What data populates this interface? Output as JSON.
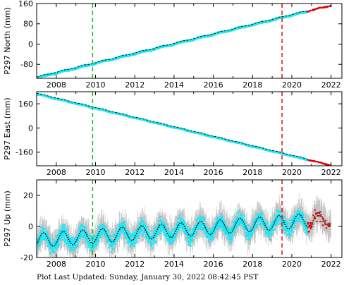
{
  "footer": "Plot Last Updated:   Sunday, January 30, 2022 08:42:45 PST",
  "colors": {
    "data": "#1fe6f5",
    "errorbars": "#aaaaaa",
    "model": "#000000",
    "recent": "#dd0000",
    "event_green": "#22bb22",
    "event_red": "#dd1111"
  },
  "chart_data": [
    {
      "type": "scatter",
      "ylabel": "P297 North (mm)",
      "xlim": [
        2007.0,
        2022.55
      ],
      "ylim": [
        -135,
        160
      ],
      "yticks": [
        -80,
        0,
        80,
        160
      ],
      "xticks": [
        2008,
        2010,
        2012,
        2014,
        2016,
        2018,
        2020,
        2022
      ],
      "vlines": [
        {
          "x": 2009.85,
          "color": "green"
        },
        {
          "x": 2019.5,
          "color": "red"
        }
      ],
      "series": [
        {
          "trend": {
            "x": [
              2007.0,
              2022.0
            ],
            "y": [
              -130,
              155
            ]
          },
          "seasonal_amplitude": 1.5,
          "scatter": 2.5
        }
      ]
    },
    {
      "type": "scatter",
      "ylabel": "P297 East (mm)",
      "xlim": [
        2007.0,
        2022.55
      ],
      "ylim": [
        -250,
        240
      ],
      "yticks": [
        -160,
        0,
        160
      ],
      "xticks": [
        2008,
        2010,
        2012,
        2014,
        2016,
        2018,
        2020,
        2022
      ],
      "vlines": [
        {
          "x": 2009.85,
          "color": "green"
        },
        {
          "x": 2019.5,
          "color": "red"
        }
      ],
      "series": [
        {
          "trend": {
            "x": [
              2007.0,
              2022.0
            ],
            "y": [
              230,
              -243
            ]
          },
          "seasonal_amplitude": 1.5,
          "scatter": 3
        }
      ]
    },
    {
      "type": "scatter",
      "ylabel": "P297 Up (mm)",
      "xlim": [
        2007.0,
        2022.55
      ],
      "ylim": [
        -20,
        30
      ],
      "yticks": [
        -20,
        0,
        20
      ],
      "xticks": [
        2008,
        2010,
        2012,
        2014,
        2016,
        2018,
        2020,
        2022
      ],
      "vlines": [
        {
          "x": 2009.85,
          "color": "green"
        },
        {
          "x": 2019.5,
          "color": "red"
        }
      ],
      "series": [
        {
          "trend": {
            "x": [
              2007.0,
              2022.0
            ],
            "y": [
              -9,
              5
            ]
          },
          "seasonal_amplitude": 4.5,
          "scatter": 4,
          "errorbar": 7
        }
      ]
    }
  ]
}
